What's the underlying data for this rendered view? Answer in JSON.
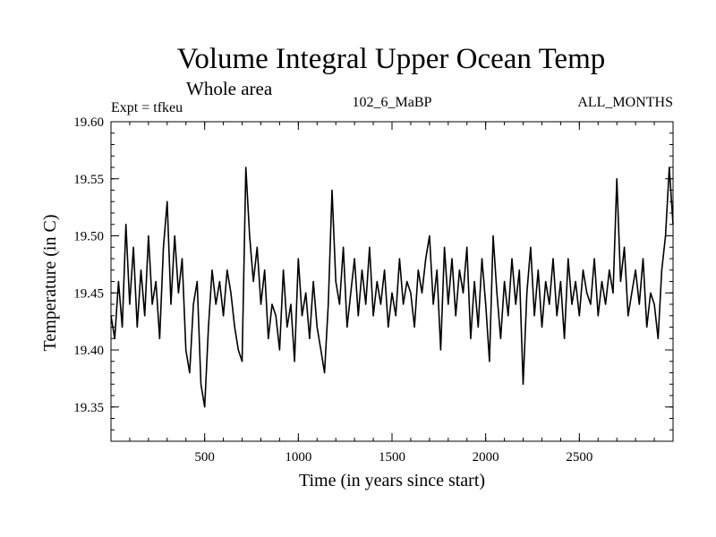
{
  "chart_data": {
    "type": "line",
    "title": "Volume Integral Upper Ocean Temp",
    "subtitle": "Whole area",
    "annotations": {
      "left": "Expt = tfkeu",
      "center": "102_6_MaBP",
      "right": "ALL_MONTHS"
    },
    "xlabel": "Time (in years since start)",
    "ylabel": "Temperature (in C)",
    "xlim": [
      0,
      3000
    ],
    "ylim": [
      19.32,
      19.6
    ],
    "xticks": [
      500,
      1000,
      1500,
      2000,
      2500
    ],
    "xtick_labels": [
      "500",
      "1000",
      "1500",
      "2000",
      "2500"
    ],
    "yticks": [
      19.35,
      19.4,
      19.45,
      19.5,
      19.55,
      19.6
    ],
    "ytick_labels": [
      "19.35",
      "19.40",
      "19.45",
      "19.50",
      "19.55",
      "19.60"
    ],
    "grid": false,
    "line_color": "#000000",
    "series": [
      {
        "x": [
          0,
          20,
          40,
          60,
          80,
          100,
          120,
          140,
          160,
          180,
          200,
          220,
          240,
          260,
          280,
          300,
          320,
          340,
          360,
          380,
          400,
          420,
          440,
          460,
          480,
          500,
          520,
          540,
          560,
          580,
          600,
          620,
          640,
          660,
          680,
          700,
          720,
          740,
          760,
          780,
          800,
          820,
          840,
          860,
          880,
          900,
          920,
          940,
          960,
          980,
          1000,
          1020,
          1040,
          1060,
          1080,
          1100,
          1120,
          1140,
          1160,
          1180,
          1200,
          1220,
          1240,
          1260,
          1280,
          1300,
          1320,
          1340,
          1360,
          1380,
          1400,
          1420,
          1440,
          1460,
          1480,
          1500,
          1520,
          1540,
          1560,
          1580,
          1600,
          1620,
          1640,
          1660,
          1680,
          1700,
          1720,
          1740,
          1760,
          1780,
          1800,
          1820,
          1840,
          1860,
          1880,
          1900,
          1920,
          1940,
          1960,
          1980,
          2000,
          2020,
          2040,
          2060,
          2080,
          2100,
          2120,
          2140,
          2160,
          2180,
          2200,
          2220,
          2240,
          2260,
          2280,
          2300,
          2320,
          2340,
          2360,
          2380,
          2400,
          2420,
          2440,
          2460,
          2480,
          2500,
          2520,
          2540,
          2560,
          2580,
          2600,
          2620,
          2640,
          2660,
          2680,
          2700,
          2720,
          2740,
          2760,
          2780,
          2800,
          2820,
          2840,
          2860,
          2880,
          2900,
          2920,
          2940,
          2960,
          2980,
          3000
        ],
        "values": [
          19.43,
          19.41,
          19.46,
          19.42,
          19.51,
          19.44,
          19.49,
          19.42,
          19.47,
          19.43,
          19.5,
          19.44,
          19.46,
          19.41,
          19.49,
          19.53,
          19.44,
          19.5,
          19.45,
          19.48,
          19.4,
          19.38,
          19.44,
          19.46,
          19.37,
          19.35,
          19.42,
          19.47,
          19.44,
          19.46,
          19.43,
          19.47,
          19.45,
          19.42,
          19.4,
          19.39,
          19.56,
          19.5,
          19.46,
          19.49,
          19.44,
          19.47,
          19.41,
          19.44,
          19.43,
          19.4,
          19.47,
          19.42,
          19.44,
          19.39,
          19.48,
          19.43,
          19.45,
          19.41,
          19.46,
          19.42,
          19.4,
          19.38,
          19.44,
          19.54,
          19.46,
          19.44,
          19.49,
          19.42,
          19.45,
          19.48,
          19.43,
          19.47,
          19.44,
          19.49,
          19.43,
          19.46,
          19.44,
          19.47,
          19.42,
          19.45,
          19.43,
          19.48,
          19.44,
          19.46,
          19.45,
          19.42,
          19.47,
          19.45,
          19.48,
          19.5,
          19.44,
          19.47,
          19.4,
          19.49,
          19.44,
          19.48,
          19.43,
          19.47,
          19.45,
          19.49,
          19.41,
          19.46,
          19.42,
          19.48,
          19.44,
          19.39,
          19.5,
          19.45,
          19.41,
          19.46,
          19.43,
          19.48,
          19.44,
          19.47,
          19.37,
          19.45,
          19.49,
          19.43,
          19.47,
          19.42,
          19.46,
          19.44,
          19.48,
          19.43,
          19.46,
          19.41,
          19.48,
          19.44,
          19.46,
          19.43,
          19.47,
          19.45,
          19.44,
          19.48,
          19.43,
          19.46,
          19.44,
          19.47,
          19.45,
          19.55,
          19.46,
          19.49,
          19.43,
          19.45,
          19.47,
          19.44,
          19.48,
          19.42,
          19.45,
          19.44,
          19.41,
          19.47,
          19.5,
          19.56,
          19.51
        ]
      }
    ]
  }
}
